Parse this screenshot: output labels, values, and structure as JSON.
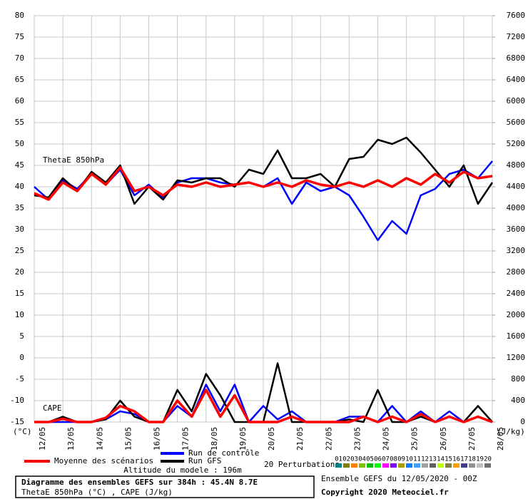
{
  "chart_data": {
    "type": "line",
    "label_theta": "ThetaE 850hPa",
    "label_cape": "CAPE",
    "y_unit": "(°C)",
    "y2_unit": "(J/kg)",
    "categories": [
      "12/05",
      null,
      "13/05",
      null,
      "14/05",
      null,
      "15/05",
      null,
      "16/05",
      null,
      "17/05",
      null,
      "18/05",
      null,
      "19/05",
      null,
      "20/05",
      null,
      "21/05",
      null,
      "22/05",
      null,
      "23/05",
      null,
      "24/05",
      null,
      "25/05",
      null,
      "26/05",
      null,
      "27/05",
      null,
      "28/05"
    ],
    "ylim": [
      -15,
      80
    ],
    "yticks": [
      -15,
      -10,
      -5,
      0,
      5,
      10,
      15,
      20,
      25,
      30,
      35,
      40,
      45,
      50,
      55,
      60,
      65,
      70,
      75,
      80
    ],
    "y2lim": [
      0,
      7600
    ],
    "y2ticks": [
      0,
      400,
      800,
      1200,
      1600,
      2000,
      2400,
      2800,
      3200,
      3600,
      4000,
      4400,
      4800,
      5200,
      5600,
      6000,
      6400,
      6800,
      7200,
      7600
    ],
    "grid": true,
    "series": [
      {
        "name": "Run de contrôle",
        "color": "#0000ff",
        "values": [
          40,
          37,
          41.5,
          39.5,
          43,
          40.5,
          44,
          38,
          40.5,
          37.5,
          41,
          42,
          42,
          41,
          40.5,
          41,
          40,
          42,
          36,
          41,
          39,
          40,
          38,
          33,
          27.5,
          32,
          29,
          38,
          39.5,
          43,
          44,
          42,
          46
        ]
      },
      {
        "name": "Run GFS",
        "color": "#000000",
        "values": [
          38,
          37.5,
          42,
          39,
          43.5,
          41,
          45,
          36,
          40,
          37,
          41.5,
          41,
          42,
          42,
          40,
          44,
          43,
          48.5,
          42,
          42,
          43,
          40,
          46.5,
          47,
          51,
          50,
          51.5,
          48,
          44,
          40,
          45,
          36,
          41
        ]
      },
      {
        "name": "Moyenne des scénarios",
        "color": "#ff0000",
        "values": [
          38.5,
          37,
          41,
          39,
          43,
          40.5,
          44.5,
          39,
          40,
          38,
          40.5,
          40,
          41,
          40,
          40.5,
          41,
          40,
          41,
          40,
          41.5,
          40.5,
          40,
          41,
          40,
          41.5,
          40,
          42,
          40.5,
          43,
          41,
          43.5,
          42,
          42.5
        ]
      },
      {
        "name": "Run de contrôle",
        "color": "#0000ff",
        "axis": "y2",
        "values": [
          0,
          0,
          0,
          0,
          0,
          50,
          200,
          150,
          0,
          0,
          300,
          100,
          700,
          200,
          700,
          0,
          300,
          50,
          200,
          0,
          0,
          0,
          100,
          100,
          0,
          300,
          0,
          200,
          0,
          200,
          0,
          100,
          0
        ]
      },
      {
        "name": "Run GFS",
        "color": "#000000",
        "axis": "y2",
        "values": [
          0,
          0,
          100,
          0,
          0,
          50,
          400,
          100,
          0,
          0,
          600,
          200,
          900,
          500,
          0,
          0,
          0,
          1100,
          0,
          0,
          0,
          0,
          50,
          0,
          600,
          0,
          0,
          100,
          0,
          100,
          0,
          300,
          0
        ]
      },
      {
        "name": "Moyenne des scénarios",
        "color": "#ff0000",
        "axis": "y2",
        "values": [
          0,
          0,
          60,
          0,
          0,
          80,
          300,
          200,
          0,
          0,
          400,
          100,
          600,
          100,
          500,
          0,
          0,
          0,
          100,
          0,
          0,
          0,
          0,
          100,
          0,
          100,
          0,
          150,
          0,
          100,
          0,
          100,
          0
        ]
      }
    ],
    "altitude": "Altitude du modele : 196m",
    "perturbations_title": "20 Perturbations",
    "perturbations": [
      {
        "label": "01",
        "color": "#008080"
      },
      {
        "label": "02",
        "color": "#808000"
      },
      {
        "label": "03",
        "color": "#ff8000"
      },
      {
        "label": "04",
        "color": "#80c000"
      },
      {
        "label": "05",
        "color": "#00c000"
      },
      {
        "label": "06",
        "color": "#00ff00"
      },
      {
        "label": "07",
        "color": "#ff00ff"
      },
      {
        "label": "08",
        "color": "#8000ff"
      },
      {
        "label": "09",
        "color": "#a0a000"
      },
      {
        "label": "10",
        "color": "#0080ff"
      },
      {
        "label": "11",
        "color": "#40a0ff"
      },
      {
        "label": "12",
        "color": "#a0a0a0"
      },
      {
        "label": "13",
        "color": "#606060"
      },
      {
        "label": "14",
        "color": "#c0ff00"
      },
      {
        "label": "15",
        "color": "#808040"
      },
      {
        "label": "16",
        "color": "#ffa000"
      },
      {
        "label": "17",
        "color": "#404080"
      },
      {
        "label": "18",
        "color": "#909090"
      },
      {
        "label": "19",
        "color": "#c0c0c0"
      },
      {
        "label": "20",
        "color": "#707070"
      }
    ],
    "title": "Diagramme des ensembles GEFS sur 384h : 45.4N 8.7E",
    "subtitle": "ThetaE 850hPa (°C) , CAPE (J/kg)",
    "run_info": "Ensemble GEFS du 12/05/2020 - 00Z",
    "copyright": "Copyright 2020 Meteociel.fr"
  }
}
